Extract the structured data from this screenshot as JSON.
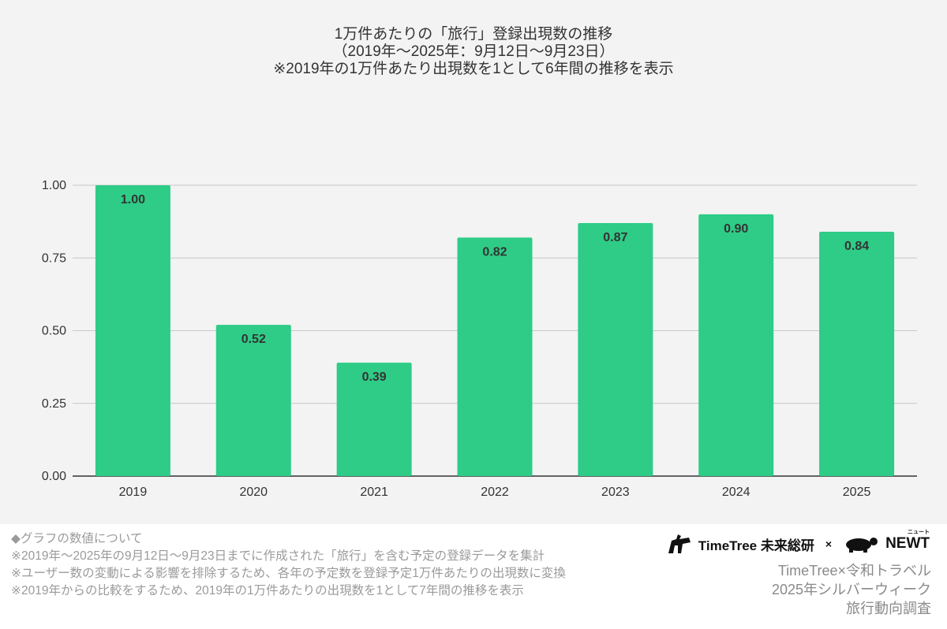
{
  "chart_data": {
    "type": "bar",
    "title": [
      "1万件あたりの「旅行」登録出現数の推移",
      "（2019年〜2025年：9月12日〜9月23日）",
      "※2019年の1万件あたり出現数を1として6年間の推移を表示"
    ],
    "categories": [
      "2019",
      "2020",
      "2021",
      "2022",
      "2023",
      "2024",
      "2025"
    ],
    "values": [
      1.0,
      0.52,
      0.39,
      0.82,
      0.87,
      0.9,
      0.84
    ],
    "data_labels": [
      "1.00",
      "0.52",
      "0.39",
      "0.82",
      "0.87",
      "0.90",
      "0.84"
    ],
    "yticks": [
      "0.00",
      "0.25",
      "0.50",
      "0.75",
      "1.00"
    ],
    "ytick_values": [
      0,
      0.25,
      0.5,
      0.75,
      1.0
    ],
    "ylim": [
      0,
      1.0
    ],
    "xlabel": "",
    "ylabel": "",
    "grid": true,
    "bar_color": "#2ecc87"
  },
  "notes": [
    "◆グラフの数値について",
    "※2019年〜2025年の9月12日〜9月23日までに作成された「旅行」を含む予定の登録データを集計",
    "※ユーザー数の変動による影響を排除するため、各年の予定数を登録予定1万件あたりの出現数に変換",
    "※2019年からの比較をするため、2019年の1万件あたりの出現数を1として7年間の推移を表示"
  ],
  "logos": {
    "timetree": "TimeTree 未来総研",
    "times": "×",
    "newt": "NEWT",
    "newt_ruby": "ニュート"
  },
  "credit": [
    "TimeTree×令和トラベル",
    "2025年シルバーウィーク",
    "旅行動向調査"
  ]
}
